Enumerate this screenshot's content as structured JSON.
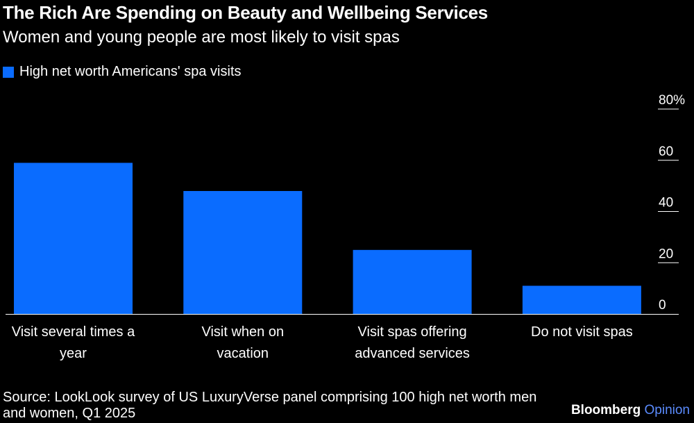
{
  "header": {
    "title": "The Rich Are Spending on Beauty and Wellbeing Services",
    "subtitle": "Women and young people are most likely to visit spas"
  },
  "legend": {
    "label": "High net worth Americans' spa visits"
  },
  "footer": {
    "source": "Source: LookLook survey of US LuxuryVerse panel comprising 100 high net worth men and women, Q1 2025",
    "brand_primary": "Bloomberg",
    "brand_secondary": "Opinion"
  },
  "colors": {
    "bar": "#0a6cff",
    "background": "#000000",
    "text": "#ffffff",
    "brand_accent": "#5b8cff"
  },
  "chart_data": {
    "type": "bar",
    "title": "The Rich Are Spending on Beauty and Wellbeing Services",
    "subtitle": "Women and young people are most likely to visit spas",
    "categories": [
      [
        "Visit several times a",
        "year"
      ],
      [
        "Visit when on",
        "vacation"
      ],
      [
        "Visit spas offering",
        "advanced services"
      ],
      [
        "Do not visit spas"
      ]
    ],
    "series": [
      {
        "name": "High net worth Americans' spa visits",
        "values": [
          59,
          48,
          25,
          11
        ]
      }
    ],
    "ylim": [
      0,
      80
    ],
    "yticks": [
      0,
      20,
      40,
      60,
      80
    ],
    "ytick_labels": [
      "0",
      "20",
      "40",
      "60",
      "80%"
    ],
    "y_axis_side": "right",
    "grid": false,
    "legend_position": "top-left"
  }
}
